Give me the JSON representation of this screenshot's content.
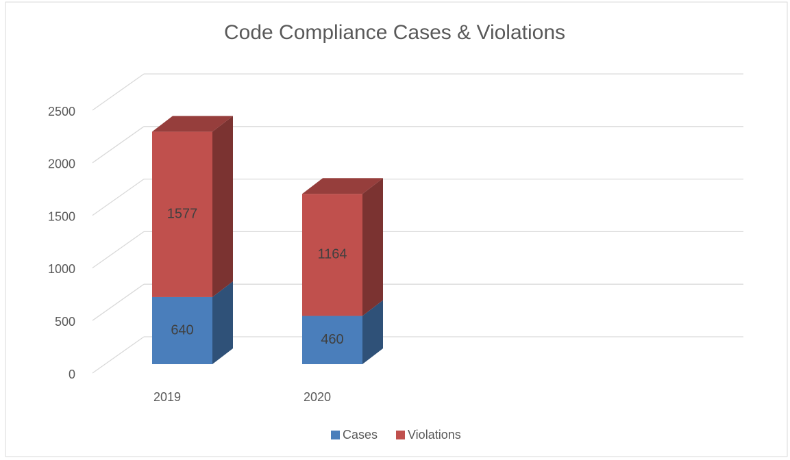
{
  "chart_data": {
    "type": "bar3d_stacked",
    "title": "Code Compliance Cases & Violations",
    "categories": [
      "2019",
      "2020"
    ],
    "series": [
      {
        "name": "Cases",
        "color": "#4a7ebb",
        "values": [
          640,
          460
        ]
      },
      {
        "name": "Violations",
        "color": "#c0504d",
        "values": [
          1577,
          1164
        ]
      }
    ],
    "ylim": [
      0,
      2500
    ],
    "yticks": [
      0,
      500,
      1000,
      1500,
      2000,
      2500
    ],
    "grid": true,
    "legend": "bottom"
  }
}
